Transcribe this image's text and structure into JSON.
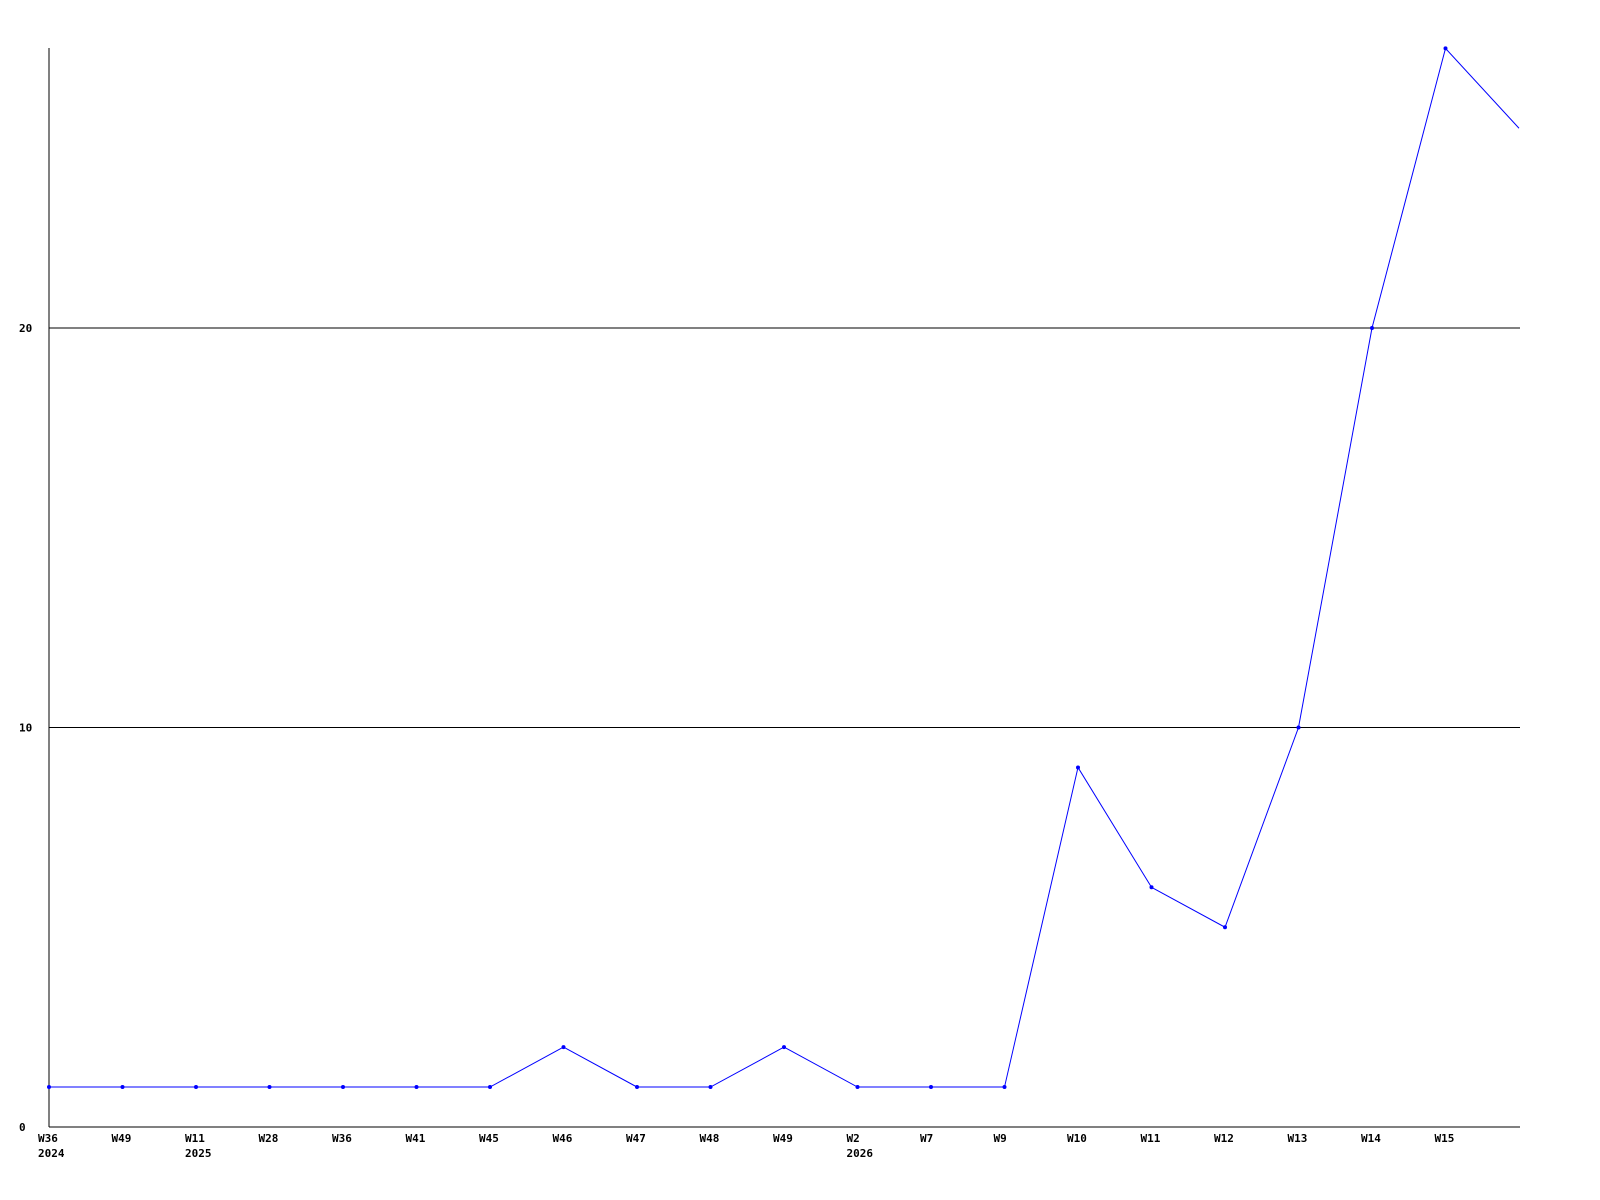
{
  "chart_data": {
    "type": "line",
    "title": "",
    "xlabel": "",
    "ylabel": "",
    "ylim": [
      0,
      27
    ],
    "yticks": [
      0,
      10,
      20
    ],
    "grid": true,
    "line_color": "#0000ff",
    "categories": [
      {
        "label": "W36",
        "year": "2024"
      },
      {
        "label": "W49",
        "year": ""
      },
      {
        "label": "W11",
        "year": "2025"
      },
      {
        "label": "W28",
        "year": ""
      },
      {
        "label": "W36",
        "year": ""
      },
      {
        "label": "W41",
        "year": ""
      },
      {
        "label": "W45",
        "year": ""
      },
      {
        "label": "W46",
        "year": ""
      },
      {
        "label": "W47",
        "year": ""
      },
      {
        "label": "W48",
        "year": ""
      },
      {
        "label": "W49",
        "year": ""
      },
      {
        "label": "W2",
        "year": "2026"
      },
      {
        "label": "W7",
        "year": ""
      },
      {
        "label": "W9",
        "year": ""
      },
      {
        "label": "W10",
        "year": ""
      },
      {
        "label": "W11",
        "year": ""
      },
      {
        "label": "W12",
        "year": ""
      },
      {
        "label": "W13",
        "year": ""
      },
      {
        "label": "W14",
        "year": ""
      },
      {
        "label": "W15",
        "year": ""
      },
      {
        "label": "",
        "year": ""
      }
    ],
    "values": [
      1,
      1,
      1,
      1,
      1,
      1,
      1,
      2,
      1,
      1,
      2,
      1,
      1,
      1,
      9,
      6,
      5,
      10,
      20,
      27,
      25
    ]
  }
}
